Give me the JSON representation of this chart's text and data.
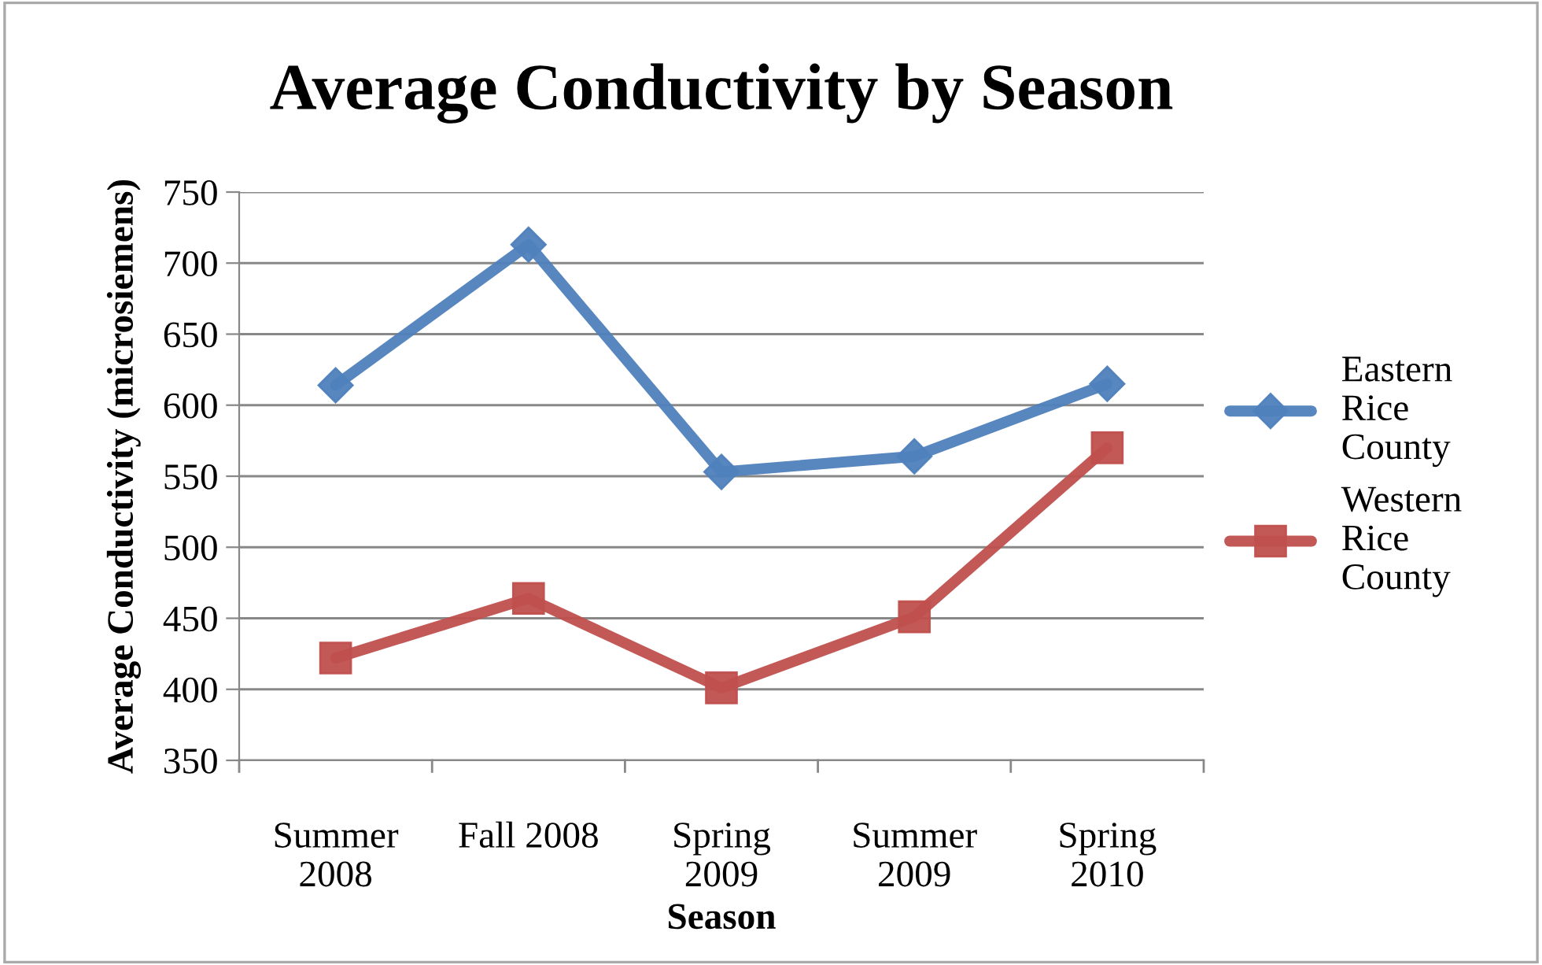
{
  "chart_data": {
    "type": "line",
    "title": "Average Conductivity by Season",
    "xlabel": "Season",
    "ylabel": "Average Conductivity (microsiemens)",
    "categories": [
      "Summer\n2008",
      "Fall 2008",
      "Spring\n2009",
      "Summer\n2009",
      "Spring\n2010"
    ],
    "series": [
      {
        "name": "Eastern\nRice\nCounty",
        "color": "#4f81bd",
        "marker": "diamond",
        "values": [
          614,
          713,
          553,
          564,
          615
        ]
      },
      {
        "name": "Western\nRice\nCounty",
        "color": "#c0504d",
        "marker": "square",
        "values": [
          422,
          464,
          401,
          451,
          570
        ]
      }
    ],
    "ylim": [
      350,
      750
    ],
    "yticks": [
      350,
      400,
      450,
      500,
      550,
      600,
      650,
      700,
      750
    ],
    "grid": "y",
    "legend": "right",
    "line_style": "solid"
  }
}
